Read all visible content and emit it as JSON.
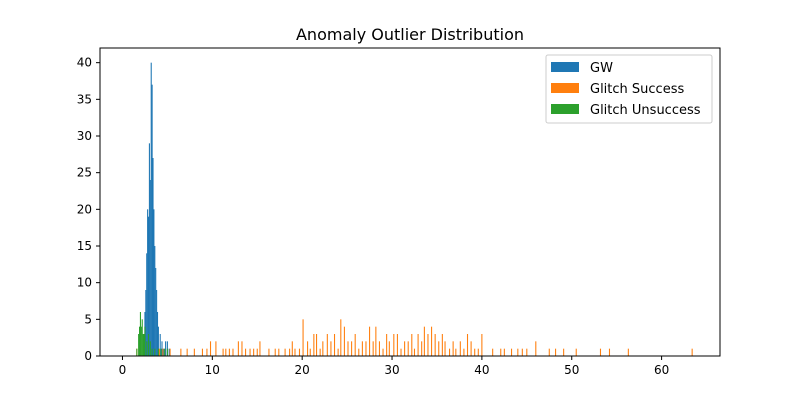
{
  "chart_data": {
    "type": "bar",
    "title": "Anomaly Outlier Distribution",
    "xlabel": "",
    "ylabel": "",
    "xlim": [
      -2.5,
      66.5
    ],
    "ylim": [
      0,
      42
    ],
    "xticks": [
      0,
      10,
      20,
      30,
      40,
      50,
      60
    ],
    "yticks": [
      0,
      5,
      10,
      15,
      20,
      25,
      30,
      35,
      40
    ],
    "grid": false,
    "legend_position": "top-right",
    "bin_width": 0.12,
    "series": [
      {
        "name": "GW",
        "color": "#1f77b4",
        "bins": [
          [
            2.4,
            3
          ],
          [
            2.5,
            6
          ],
          [
            2.6,
            9
          ],
          [
            2.7,
            14
          ],
          [
            2.8,
            20
          ],
          [
            2.9,
            19
          ],
          [
            3.0,
            29
          ],
          [
            3.1,
            24
          ],
          [
            3.2,
            40
          ],
          [
            3.3,
            37
          ],
          [
            3.4,
            27
          ],
          [
            3.5,
            20
          ],
          [
            3.6,
            15
          ],
          [
            3.7,
            12
          ],
          [
            3.8,
            9
          ],
          [
            3.9,
            6
          ],
          [
            4.0,
            4
          ],
          [
            4.2,
            3
          ],
          [
            4.4,
            2
          ],
          [
            4.6,
            1
          ],
          [
            4.8,
            2
          ],
          [
            5.0,
            2
          ],
          [
            5.2,
            1
          ]
        ]
      },
      {
        "name": "Glitch Success",
        "color": "#ff7f0e",
        "bins": [
          [
            1.6,
            1
          ],
          [
            2.0,
            1
          ],
          [
            4.1,
            1
          ],
          [
            4.5,
            1
          ],
          [
            5.3,
            1
          ],
          [
            6.5,
            1
          ],
          [
            7.2,
            1
          ],
          [
            8.0,
            1
          ],
          [
            8.9,
            1
          ],
          [
            9.4,
            1
          ],
          [
            9.8,
            2
          ],
          [
            10.4,
            2
          ],
          [
            11.2,
            1
          ],
          [
            11.5,
            1
          ],
          [
            11.9,
            1
          ],
          [
            12.3,
            1
          ],
          [
            12.9,
            2
          ],
          [
            13.3,
            2
          ],
          [
            13.7,
            1
          ],
          [
            14.2,
            1
          ],
          [
            14.6,
            1
          ],
          [
            15.0,
            1
          ],
          [
            15.3,
            2
          ],
          [
            16.3,
            1
          ],
          [
            17.0,
            1
          ],
          [
            17.4,
            1
          ],
          [
            18.1,
            1
          ],
          [
            18.6,
            1
          ],
          [
            18.9,
            2
          ],
          [
            19.2,
            1
          ],
          [
            19.7,
            1
          ],
          [
            20.1,
            5
          ],
          [
            20.6,
            2
          ],
          [
            20.9,
            1
          ],
          [
            21.3,
            3
          ],
          [
            21.6,
            3
          ],
          [
            22.0,
            1
          ],
          [
            22.3,
            2
          ],
          [
            22.8,
            3
          ],
          [
            23.2,
            2
          ],
          [
            23.6,
            3
          ],
          [
            24.0,
            1
          ],
          [
            24.3,
            5
          ],
          [
            24.7,
            4
          ],
          [
            25.1,
            2
          ],
          [
            25.5,
            2
          ],
          [
            25.9,
            3
          ],
          [
            26.3,
            1
          ],
          [
            26.7,
            2
          ],
          [
            27.1,
            2
          ],
          [
            27.5,
            4
          ],
          [
            27.9,
            2
          ],
          [
            28.2,
            4
          ],
          [
            28.6,
            2
          ],
          [
            29.0,
            1
          ],
          [
            29.4,
            3
          ],
          [
            29.7,
            2
          ],
          [
            30.2,
            3
          ],
          [
            30.6,
            3
          ],
          [
            31.0,
            1
          ],
          [
            31.4,
            2
          ],
          [
            31.8,
            2
          ],
          [
            32.2,
            3
          ],
          [
            32.5,
            1
          ],
          [
            32.9,
            3
          ],
          [
            33.3,
            2
          ],
          [
            33.6,
            4
          ],
          [
            34.0,
            3
          ],
          [
            34.4,
            4
          ],
          [
            34.8,
            3
          ],
          [
            35.2,
            2
          ],
          [
            35.6,
            3
          ],
          [
            35.9,
            2
          ],
          [
            36.4,
            1
          ],
          [
            36.8,
            2
          ],
          [
            37.1,
            1
          ],
          [
            37.6,
            2
          ],
          [
            38.0,
            1
          ],
          [
            38.4,
            3
          ],
          [
            38.8,
            2
          ],
          [
            39.2,
            1
          ],
          [
            39.6,
            1
          ],
          [
            40.0,
            3
          ],
          [
            41.2,
            1
          ],
          [
            42.1,
            1
          ],
          [
            42.5,
            1
          ],
          [
            43.3,
            1
          ],
          [
            44.0,
            1
          ],
          [
            44.5,
            1
          ],
          [
            45.0,
            1
          ],
          [
            46.0,
            2
          ],
          [
            47.5,
            1
          ],
          [
            48.2,
            1
          ],
          [
            49.1,
            1
          ],
          [
            50.5,
            1
          ],
          [
            53.2,
            1
          ],
          [
            54.2,
            1
          ],
          [
            56.3,
            1
          ],
          [
            63.4,
            1
          ]
        ]
      },
      {
        "name": "Glitch Unsuccess",
        "color": "#2ca02c",
        "bins": [
          [
            1.6,
            1
          ],
          [
            1.8,
            3
          ],
          [
            1.9,
            4
          ],
          [
            2.0,
            6
          ],
          [
            2.1,
            4
          ],
          [
            2.2,
            5
          ],
          [
            2.3,
            3
          ],
          [
            2.4,
            3
          ],
          [
            2.5,
            4
          ],
          [
            2.7,
            2
          ],
          [
            2.9,
            3
          ],
          [
            3.1,
            2
          ],
          [
            3.3,
            1
          ],
          [
            3.6,
            1
          ],
          [
            4.0,
            1
          ],
          [
            4.3,
            1
          ],
          [
            4.7,
            1
          ],
          [
            5.0,
            1
          ]
        ]
      }
    ]
  }
}
